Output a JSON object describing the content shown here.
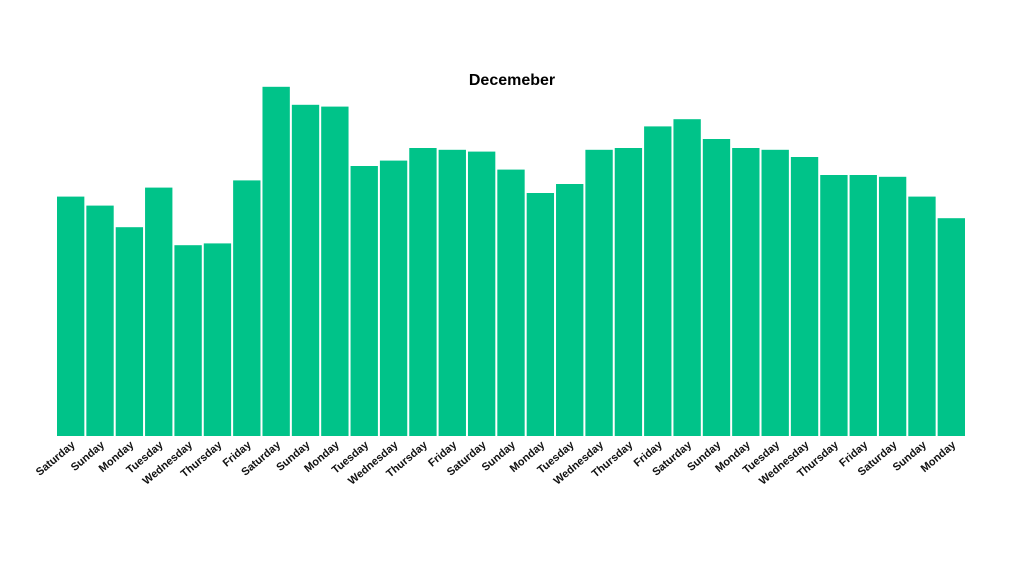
{
  "chart_data": {
    "type": "bar",
    "title": "Decemeber",
    "xlabel": "",
    "ylabel": "",
    "bar_color": "#00C389",
    "ylim": [
      0,
      100
    ],
    "grid": false,
    "categories": [
      "Saturday",
      "Sunday",
      "Monday",
      "Tuesday",
      "Wednesday",
      "Thursday",
      "Friday",
      "Saturday",
      "Sunday",
      "Monday",
      "Tuesday",
      "Wednesday",
      "Thursday",
      "Friday",
      "Saturday",
      "Sunday",
      "Monday",
      "Tuesday",
      "Wednesday",
      "Thursday",
      "Friday",
      "Saturday",
      "Sunday",
      "Monday",
      "Tuesday",
      "Wednesday",
      "Thursday",
      "Friday",
      "Saturday",
      "Sunday",
      "Monday"
    ],
    "values": [
      66.5,
      64,
      58,
      69,
      53,
      53.5,
      71,
      97,
      92,
      91.5,
      75,
      76.5,
      80,
      79.5,
      79,
      74,
      67.5,
      70,
      79.5,
      80,
      86,
      88,
      82.5,
      80,
      79.5,
      77.5,
      72.5,
      72.5,
      72,
      66.5,
      60.5
    ]
  }
}
